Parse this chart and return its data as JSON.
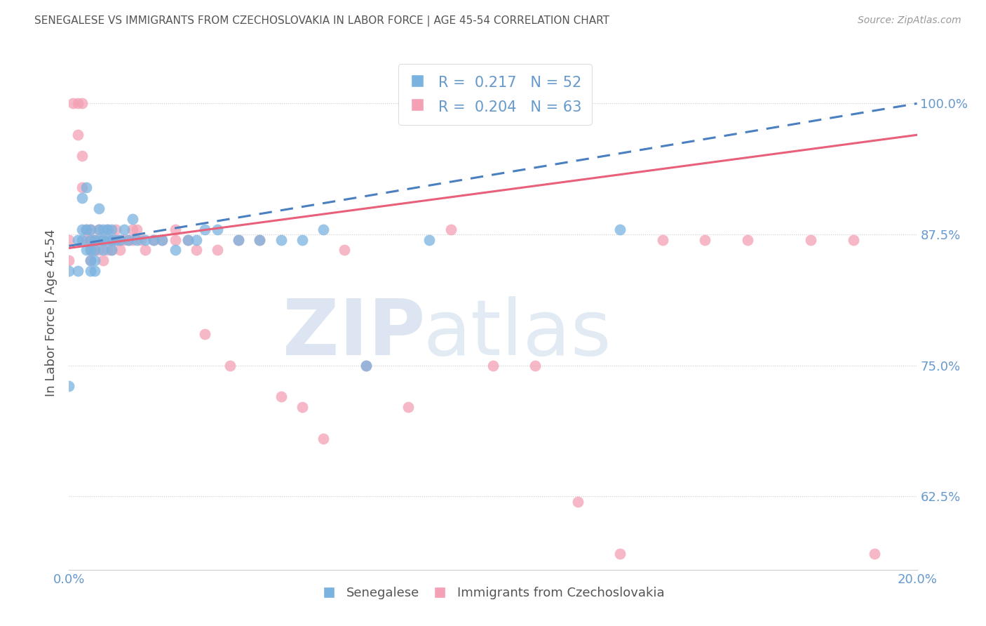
{
  "title": "SENEGALESE VS IMMIGRANTS FROM CZECHOSLOVAKIA IN LABOR FORCE | AGE 45-54 CORRELATION CHART",
  "source": "Source: ZipAtlas.com",
  "ylabel": "In Labor Force | Age 45-54",
  "xlim": [
    0.0,
    0.2
  ],
  "ylim": [
    0.555,
    1.045
  ],
  "yticks": [
    0.625,
    0.75,
    0.875,
    1.0
  ],
  "ytick_labels": [
    "62.5%",
    "75.0%",
    "87.5%",
    "100.0%"
  ],
  "xticks": [
    0.0,
    0.05,
    0.1,
    0.15,
    0.2
  ],
  "xtick_labels": [
    "0.0%",
    "",
    "",
    "",
    "20.0%"
  ],
  "blue_R": 0.217,
  "blue_N": 52,
  "pink_R": 0.204,
  "pink_N": 63,
  "blue_color": "#7ab3e0",
  "pink_color": "#f4a0b5",
  "blue_line_color": "#4a7fc0",
  "pink_line_color": "#e8607a",
  "blue_scatter_x": [
    0.0,
    0.0,
    0.002,
    0.002,
    0.003,
    0.003,
    0.003,
    0.004,
    0.004,
    0.004,
    0.005,
    0.005,
    0.005,
    0.005,
    0.005,
    0.006,
    0.006,
    0.006,
    0.006,
    0.007,
    0.007,
    0.007,
    0.008,
    0.008,
    0.008,
    0.009,
    0.009,
    0.01,
    0.01,
    0.01,
    0.011,
    0.012,
    0.013,
    0.014,
    0.015,
    0.016,
    0.018,
    0.02,
    0.022,
    0.025,
    0.028,
    0.03,
    0.032,
    0.035,
    0.04,
    0.045,
    0.05,
    0.055,
    0.06,
    0.07,
    0.085,
    0.13
  ],
  "blue_scatter_y": [
    0.84,
    0.73,
    0.87,
    0.84,
    0.91,
    0.88,
    0.87,
    0.88,
    0.86,
    0.92,
    0.88,
    0.86,
    0.87,
    0.85,
    0.84,
    0.87,
    0.86,
    0.85,
    0.84,
    0.9,
    0.88,
    0.87,
    0.86,
    0.88,
    0.87,
    0.88,
    0.87,
    0.88,
    0.87,
    0.86,
    0.87,
    0.87,
    0.88,
    0.87,
    0.89,
    0.87,
    0.87,
    0.87,
    0.87,
    0.86,
    0.87,
    0.87,
    0.88,
    0.88,
    0.87,
    0.87,
    0.87,
    0.87,
    0.88,
    0.75,
    0.87,
    0.88
  ],
  "pink_scatter_x": [
    0.0,
    0.0,
    0.001,
    0.002,
    0.002,
    0.003,
    0.003,
    0.003,
    0.004,
    0.004,
    0.005,
    0.005,
    0.005,
    0.005,
    0.006,
    0.006,
    0.007,
    0.007,
    0.008,
    0.008,
    0.009,
    0.009,
    0.01,
    0.01,
    0.011,
    0.011,
    0.012,
    0.012,
    0.013,
    0.014,
    0.015,
    0.015,
    0.016,
    0.017,
    0.018,
    0.02,
    0.022,
    0.025,
    0.025,
    0.028,
    0.03,
    0.032,
    0.035,
    0.038,
    0.04,
    0.045,
    0.05,
    0.055,
    0.06,
    0.065,
    0.07,
    0.08,
    0.09,
    0.1,
    0.11,
    0.12,
    0.13,
    0.14,
    0.15,
    0.16,
    0.175,
    0.185,
    0.19
  ],
  "pink_scatter_y": [
    0.87,
    0.85,
    1.0,
    1.0,
    0.97,
    1.0,
    0.95,
    0.92,
    0.87,
    0.88,
    0.88,
    0.87,
    0.86,
    0.85,
    0.87,
    0.86,
    0.88,
    0.86,
    0.87,
    0.85,
    0.88,
    0.86,
    0.87,
    0.86,
    0.88,
    0.87,
    0.87,
    0.86,
    0.87,
    0.87,
    0.88,
    0.87,
    0.88,
    0.87,
    0.86,
    0.87,
    0.87,
    0.88,
    0.87,
    0.87,
    0.86,
    0.78,
    0.86,
    0.75,
    0.87,
    0.87,
    0.72,
    0.71,
    0.68,
    0.86,
    0.75,
    0.71,
    0.88,
    0.75,
    0.75,
    0.62,
    0.57,
    0.87,
    0.87,
    0.87,
    0.87,
    0.87,
    0.57
  ],
  "background_color": "#ffffff",
  "grid_color": "#cccccc",
  "title_color": "#555555",
  "axis_color": "#6699cc",
  "tick_color": "#6699cc"
}
